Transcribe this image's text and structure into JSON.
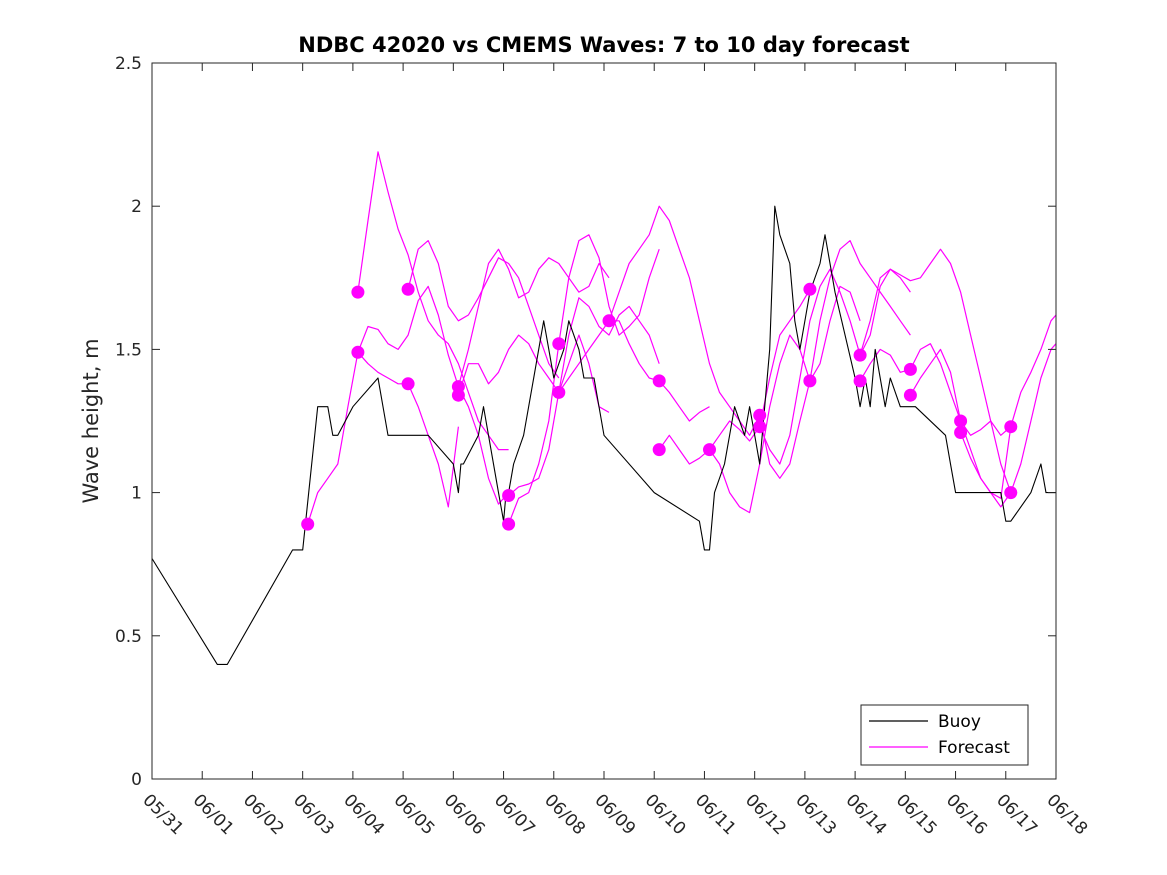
{
  "chart_data": {
    "type": "line",
    "title": "NDBC 42020 vs CMEMS Waves: 7 to 10 day forecast",
    "xlabel": "",
    "ylabel": "Wave height, m",
    "xlim": [
      0,
      18
    ],
    "ylim": [
      0,
      2.5
    ],
    "x_tick_values": [
      0,
      1,
      2,
      3,
      4,
      5,
      6,
      7,
      8,
      9,
      10,
      11,
      12,
      13,
      14,
      15,
      16,
      17,
      18
    ],
    "x_tick_labels": [
      "05/31",
      "06/01",
      "06/02",
      "06/03",
      "06/04",
      "06/05",
      "06/06",
      "06/07",
      "06/08",
      "06/09",
      "06/10",
      "06/11",
      "06/12",
      "06/13",
      "06/14",
      "06/15",
      "06/16",
      "06/17",
      "06/18"
    ],
    "y_tick_values": [
      0,
      0.5,
      1,
      1.5,
      2,
      2.5
    ],
    "y_tick_labels": [
      "0",
      "0.5",
      "1",
      "1.5",
      "2",
      "2.5"
    ],
    "grid": false,
    "legend_position": "bottom-right",
    "colors": {
      "buoy": "#000000",
      "forecast": "#ff00ff"
    },
    "series": [
      {
        "name": "Buoy",
        "color": "#000000",
        "x": [
          0,
          1.3,
          1.5,
          2.8,
          2.9,
          3.0,
          3.3,
          3.5,
          3.6,
          3.65,
          3.7,
          4.0,
          4.5,
          4.6,
          4.7,
          5.5,
          6.0,
          6.1,
          6.15,
          6.2,
          6.5,
          6.6,
          6.7,
          6.8,
          6.9,
          7.0,
          7.05,
          7.1,
          7.2,
          7.4,
          7.6,
          7.7,
          7.8,
          7.9,
          8.0,
          8.2,
          8.3,
          8.5,
          8.6,
          8.8,
          8.9,
          9.0,
          10.0,
          10.9,
          11.0,
          11.1,
          11.2,
          11.4,
          11.5,
          11.6,
          11.8,
          11.9,
          12.0,
          12.1,
          12.2,
          12.3,
          12.4,
          12.5,
          12.7,
          12.8,
          12.9,
          13.0,
          13.1,
          13.3,
          13.4,
          13.5,
          13.6,
          14.0,
          14.1,
          14.2,
          14.3,
          14.4,
          14.5,
          14.6,
          14.7,
          14.9,
          15.0,
          15.2,
          15.8,
          15.9,
          16.0,
          16.2,
          16.6,
          16.9,
          17.0,
          17.1,
          17.5,
          17.7,
          17.8,
          18.0
        ],
        "y": [
          0.77,
          0.4,
          0.4,
          0.8,
          0.8,
          0.8,
          1.3,
          1.3,
          1.2,
          1.2,
          1.2,
          1.3,
          1.4,
          1.3,
          1.2,
          1.2,
          1.1,
          1.0,
          1.1,
          1.1,
          1.2,
          1.3,
          1.2,
          1.1,
          1.0,
          0.9,
          1.0,
          1.0,
          1.1,
          1.2,
          1.4,
          1.5,
          1.6,
          1.5,
          1.4,
          1.5,
          1.6,
          1.5,
          1.4,
          1.4,
          1.3,
          1.2,
          1.0,
          0.9,
          0.8,
          0.8,
          1.0,
          1.1,
          1.2,
          1.3,
          1.2,
          1.3,
          1.2,
          1.1,
          1.3,
          1.5,
          2.0,
          1.9,
          1.8,
          1.6,
          1.5,
          1.6,
          1.7,
          1.8,
          1.9,
          1.8,
          1.7,
          1.4,
          1.3,
          1.4,
          1.3,
          1.5,
          1.4,
          1.3,
          1.4,
          1.3,
          1.3,
          1.3,
          1.2,
          1.1,
          1.0,
          1.0,
          1.0,
          1.0,
          0.9,
          0.9,
          1.0,
          1.1,
          1.0,
          1.0
        ]
      },
      {
        "name": "Forecast",
        "color": "#ff00ff",
        "x": [
          4.1,
          4.3,
          4.5,
          4.7,
          4.9,
          5.1,
          5.3,
          5.5,
          5.7,
          5.9,
          6.1,
          6.3,
          6.5,
          6.7,
          6.9,
          7.1
        ],
        "y": [
          1.7,
          1.95,
          2.19,
          2.05,
          1.92,
          1.83,
          1.7,
          1.6,
          1.55,
          1.52,
          1.45,
          1.35,
          1.25,
          1.2,
          1.15,
          1.15
        ]
      },
      {
        "name": "",
        "color": "#ff00ff",
        "x": [
          4.1,
          4.3,
          4.5,
          4.7,
          4.9,
          5.1,
          5.3,
          5.5,
          5.7,
          5.9,
          6.1,
          6.3,
          6.5,
          6.7,
          6.9,
          7.1
        ],
        "y": [
          1.49,
          1.58,
          1.57,
          1.52,
          1.5,
          1.55,
          1.67,
          1.72,
          1.62,
          1.48,
          1.37,
          1.3,
          1.2,
          1.05,
          0.96,
          1.0
        ]
      },
      {
        "name": "",
        "color": "#ff00ff",
        "x": [
          3.1,
          3.3,
          3.5,
          3.7,
          3.9,
          4.1,
          4.3,
          4.5,
          4.7,
          4.9,
          5.1,
          5.3,
          5.5,
          5.7,
          5.9,
          6.1
        ],
        "y": [
          0.89,
          1.0,
          1.05,
          1.1,
          1.3,
          1.49,
          1.45,
          1.42,
          1.4,
          1.38,
          1.38,
          1.3,
          1.2,
          1.1,
          0.95,
          1.23
        ]
      },
      {
        "name": "",
        "color": "#ff00ff",
        "x": [
          5.1,
          5.3,
          5.5,
          5.7,
          5.9,
          6.1,
          6.3,
          6.5,
          6.7,
          6.9,
          7.1,
          7.3,
          7.5,
          7.7,
          7.9,
          8.1
        ],
        "y": [
          1.71,
          1.85,
          1.88,
          1.8,
          1.65,
          1.6,
          1.62,
          1.68,
          1.75,
          1.82,
          1.8,
          1.75,
          1.65,
          1.55,
          1.45,
          1.4
        ]
      },
      {
        "name": "",
        "color": "#ff00ff",
        "x": [
          6.1,
          6.3,
          6.5,
          6.7,
          6.9,
          7.1,
          7.3,
          7.5,
          7.7,
          7.9,
          8.1,
          8.3,
          8.5,
          8.7,
          8.9,
          9.1
        ],
        "y": [
          1.37,
          1.5,
          1.65,
          1.8,
          1.85,
          1.78,
          1.68,
          1.7,
          1.78,
          1.82,
          1.8,
          1.75,
          1.7,
          1.72,
          1.8,
          1.75
        ]
      },
      {
        "name": "",
        "color": "#ff00ff",
        "x": [
          6.1,
          6.3,
          6.5,
          6.7,
          6.9,
          7.1,
          7.3,
          7.5,
          7.7,
          7.9,
          8.1,
          8.3,
          8.5,
          8.7,
          8.9,
          9.1
        ],
        "y": [
          1.34,
          1.45,
          1.45,
          1.38,
          1.42,
          1.5,
          1.55,
          1.52,
          1.45,
          1.4,
          1.35,
          1.45,
          1.55,
          1.45,
          1.3,
          1.28
        ]
      },
      {
        "name": "",
        "color": "#ff00ff",
        "x": [
          7.1,
          7.3,
          7.5,
          7.7,
          7.9,
          8.1,
          8.3,
          8.5,
          8.7,
          8.9,
          9.1,
          9.3,
          9.5,
          9.7,
          9.9,
          10.1
        ],
        "y": [
          0.99,
          1.02,
          1.03,
          1.05,
          1.15,
          1.35,
          1.55,
          1.68,
          1.65,
          1.58,
          1.55,
          1.62,
          1.65,
          1.6,
          1.55,
          1.45
        ]
      },
      {
        "name": "",
        "color": "#ff00ff",
        "x": [
          7.1,
          7.3,
          7.5,
          7.7,
          7.9,
          8.1,
          8.3,
          8.5,
          8.7,
          8.9,
          9.1,
          9.3,
          9.5,
          9.7,
          9.9,
          10.1
        ],
        "y": [
          0.89,
          0.98,
          1.0,
          1.1,
          1.25,
          1.52,
          1.75,
          1.88,
          1.9,
          1.82,
          1.65,
          1.55,
          1.58,
          1.62,
          1.75,
          1.85
        ]
      },
      {
        "name": "",
        "color": "#ff00ff",
        "x": [
          8.1,
          8.3,
          8.5,
          8.7,
          8.9,
          9.1,
          9.3,
          9.5,
          9.7,
          9.9,
          10.1,
          10.3,
          10.5,
          10.7,
          10.9,
          11.1
        ],
        "y": [
          1.35,
          1.4,
          1.45,
          1.5,
          1.55,
          1.6,
          1.6,
          1.52,
          1.45,
          1.4,
          1.39,
          1.35,
          1.3,
          1.25,
          1.28,
          1.3
        ]
      },
      {
        "name": "",
        "color": "#ff00ff",
        "x": [
          9.1,
          9.3,
          9.5,
          9.7,
          9.9,
          10.1,
          10.3,
          10.5,
          10.7,
          10.9,
          11.1,
          11.3,
          11.5,
          11.7,
          11.9,
          12.1
        ],
        "y": [
          1.6,
          1.7,
          1.8,
          1.85,
          1.9,
          2.0,
          1.95,
          1.85,
          1.75,
          1.6,
          1.45,
          1.35,
          1.3,
          1.25,
          1.2,
          1.27
        ]
      },
      {
        "name": "",
        "color": "#ff00ff",
        "x": [
          10.1,
          10.3,
          10.5,
          10.7,
          10.9,
          11.1,
          11.3,
          11.5,
          11.7,
          11.9,
          12.1,
          12.3,
          12.5,
          12.7,
          12.9,
          13.1
        ],
        "y": [
          1.15,
          1.2,
          1.15,
          1.1,
          1.12,
          1.15,
          1.2,
          1.25,
          1.22,
          1.18,
          1.23,
          1.4,
          1.55,
          1.6,
          1.65,
          1.71
        ]
      },
      {
        "name": "",
        "color": "#ff00ff",
        "x": [
          11.1,
          11.3,
          11.5,
          11.7,
          11.9,
          12.1,
          12.3,
          12.5,
          12.7,
          12.9,
          13.1,
          13.3,
          13.5,
          13.7,
          13.9,
          14.1
        ],
        "y": [
          1.15,
          1.1,
          1.0,
          0.95,
          0.93,
          1.1,
          1.3,
          1.45,
          1.55,
          1.5,
          1.39,
          1.45,
          1.6,
          1.72,
          1.7,
          1.6
        ]
      },
      {
        "name": "",
        "color": "#ff00ff",
        "x": [
          12.1,
          12.3,
          12.5,
          12.7,
          12.9,
          13.1,
          13.3,
          13.5,
          13.7,
          13.9,
          14.1,
          14.3,
          14.5,
          14.7,
          14.9,
          15.1
        ],
        "y": [
          1.27,
          1.1,
          1.05,
          1.1,
          1.25,
          1.39,
          1.6,
          1.75,
          1.85,
          1.88,
          1.8,
          1.75,
          1.7,
          1.65,
          1.6,
          1.55
        ]
      },
      {
        "name": "",
        "color": "#ff00ff",
        "x": [
          12.1,
          12.3,
          12.5,
          12.7,
          12.9,
          13.1,
          13.3,
          13.5,
          13.7,
          13.9,
          14.1,
          14.3,
          14.5,
          14.7,
          14.9,
          15.1
        ],
        "y": [
          1.23,
          1.15,
          1.1,
          1.2,
          1.4,
          1.6,
          1.72,
          1.78,
          1.7,
          1.6,
          1.48,
          1.55,
          1.72,
          1.78,
          1.75,
          1.7
        ]
      },
      {
        "name": "",
        "color": "#ff00ff",
        "x": [
          14.1,
          14.3,
          14.5,
          14.7,
          14.9,
          15.1,
          15.3,
          15.5,
          15.7,
          15.9,
          16.1,
          16.3,
          16.5,
          16.7,
          16.9,
          17.1
        ],
        "y": [
          1.48,
          1.6,
          1.75,
          1.78,
          1.76,
          1.74,
          1.75,
          1.8,
          1.85,
          1.8,
          1.7,
          1.55,
          1.4,
          1.25,
          1.1,
          1.0
        ]
      },
      {
        "name": "",
        "color": "#ff00ff",
        "x": [
          14.1,
          14.3,
          14.5,
          14.7,
          14.9,
          15.1,
          15.3,
          15.5,
          15.7,
          15.9,
          16.1,
          16.3,
          16.5,
          16.7,
          16.9,
          17.1
        ],
        "y": [
          1.39,
          1.45,
          1.5,
          1.48,
          1.42,
          1.43,
          1.5,
          1.52,
          1.45,
          1.35,
          1.25,
          1.2,
          1.22,
          1.25,
          1.2,
          1.23
        ]
      },
      {
        "name": "",
        "color": "#ff00ff",
        "x": [
          15.1,
          15.3,
          15.5,
          15.7,
          15.9,
          16.1,
          16.3,
          16.5,
          16.7,
          16.9,
          17.1,
          17.3,
          17.5,
          17.7,
          17.9,
          18.0
        ],
        "y": [
          1.34,
          1.4,
          1.45,
          1.5,
          1.42,
          1.25,
          1.15,
          1.05,
          1.0,
          0.95,
          1.0,
          1.1,
          1.25,
          1.4,
          1.5,
          1.52
        ]
      },
      {
        "name": "",
        "color": "#ff00ff",
        "x": [
          16.1,
          16.3,
          16.5,
          16.7,
          16.9,
          17.1,
          17.3,
          17.5,
          17.7,
          17.9,
          18.0
        ],
        "y": [
          1.21,
          1.12,
          1.05,
          1.0,
          0.98,
          1.23,
          1.35,
          1.42,
          1.5,
          1.6,
          1.62
        ]
      }
    ],
    "forecast_start_markers": {
      "name": "",
      "color": "#ff00ff",
      "x": [
        3.1,
        4.1,
        4.1,
        5.1,
        5.1,
        6.1,
        6.1,
        7.1,
        7.1,
        8.1,
        8.1,
        9.1,
        10.1,
        10.1,
        11.1,
        12.1,
        12.1,
        13.1,
        13.1,
        14.1,
        14.1,
        15.1,
        15.1,
        16.1,
        16.1,
        17.1,
        17.1
      ],
      "y": [
        0.89,
        1.7,
        1.49,
        1.71,
        1.38,
        1.37,
        1.34,
        0.99,
        0.89,
        1.52,
        1.35,
        1.6,
        1.39,
        1.15,
        1.15,
        1.27,
        1.23,
        1.71,
        1.39,
        1.48,
        1.39,
        1.43,
        1.34,
        1.25,
        1.21,
        1.23,
        1.0
      ]
    },
    "legend": [
      {
        "label": "Buoy",
        "color": "#000000"
      },
      {
        "label": "Forecast",
        "color": "#ff00ff"
      }
    ]
  }
}
